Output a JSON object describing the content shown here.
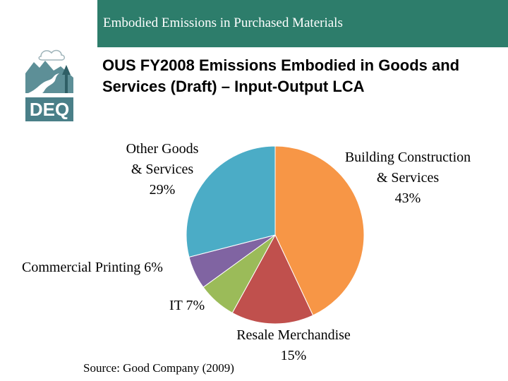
{
  "header": {
    "banner_title": "Embodied Emissions in Purchased Materials",
    "logo_text": "DEQ",
    "bar_color": "#2d7d6b"
  },
  "chart_data": {
    "type": "pie",
    "title": "OUS FY2008 Emissions Embodied in Goods and Services (Draft) – Input-Output LCA",
    "slices": [
      {
        "label": "Building Construction & Services",
        "label_lines": [
          "Building Construction",
          "& Services"
        ],
        "pct_text": "43%",
        "value": 43,
        "color": "#f79646"
      },
      {
        "label": "Resale Merchandise",
        "label_lines": [
          "Resale Merchandise"
        ],
        "pct_text": "15%",
        "value": 15,
        "color": "#c0504d"
      },
      {
        "label": "IT",
        "label_lines": [
          "IT 7%"
        ],
        "pct_text": "",
        "value": 7,
        "color": "#9bbb59"
      },
      {
        "label": "Commercial Printing",
        "label_lines": [
          "Commercial Printing 6%"
        ],
        "pct_text": "",
        "value": 6,
        "color": "#8064a2"
      },
      {
        "label": "Other Goods & Services",
        "label_lines": [
          "Other Goods",
          "& Services"
        ],
        "pct_text": "29%",
        "value": 29,
        "color": "#4bacc6"
      }
    ],
    "start": "12 o'clock",
    "direction": "clockwise",
    "legend": "none"
  },
  "source": "Source: Good Company (2009)"
}
